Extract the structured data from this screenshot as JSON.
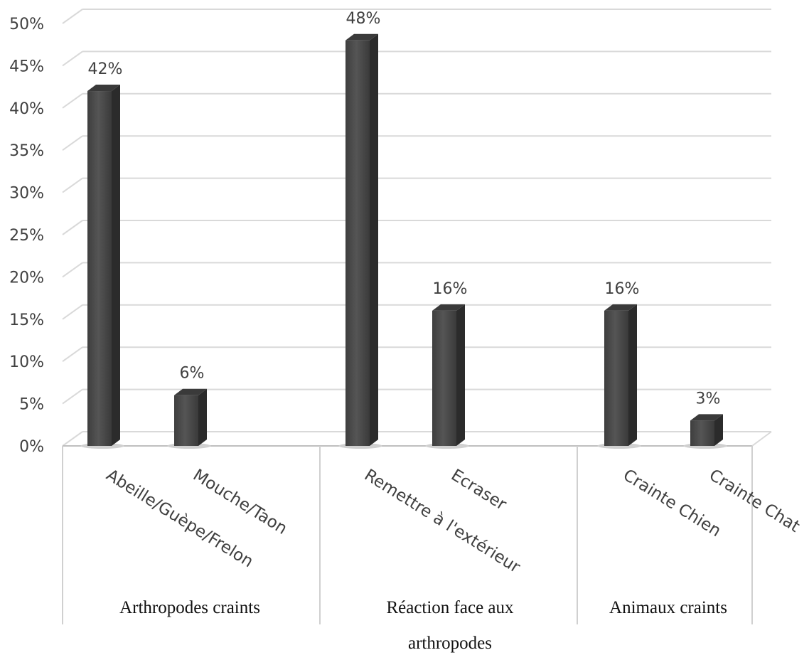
{
  "chart_data": {
    "type": "bar",
    "title": "",
    "xlabel": "",
    "ylabel": "",
    "ylim": [
      0,
      0.5
    ],
    "y_ticks": [
      "0%",
      "5%",
      "10%",
      "15%",
      "20%",
      "25%",
      "30%",
      "35%",
      "40%",
      "45%",
      "50%"
    ],
    "grid": true,
    "style": "3d-column",
    "bar_color": "#4a4a4a",
    "groups": [
      {
        "label": "Arthropodes craints",
        "categories": [
          {
            "label": "Abeille/Guèpe/Frelon",
            "value": 0.42,
            "value_label": "42%"
          },
          {
            "label": "Mouche/Taon",
            "value": 0.06,
            "value_label": "6%"
          }
        ]
      },
      {
        "label": "Réaction face aux arthropodes",
        "categories": [
          {
            "label": "Remettre à l'extérieur",
            "value": 0.48,
            "value_label": "48%"
          },
          {
            "label": "Ecraser",
            "value": 0.16,
            "value_label": "16%"
          }
        ]
      },
      {
        "label": "Animaux craints",
        "categories": [
          {
            "label": "Crainte Chien",
            "value": 0.16,
            "value_label": "16%"
          },
          {
            "label": "Crainte Chat",
            "value": 0.03,
            "value_label": "3%"
          }
        ]
      }
    ]
  }
}
